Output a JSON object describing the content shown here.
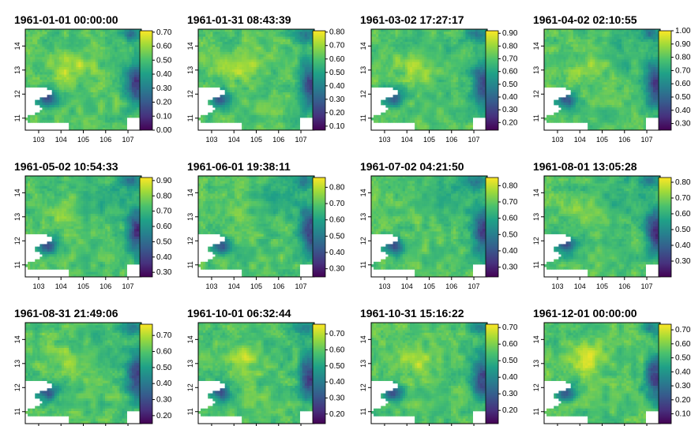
{
  "chart_data": {
    "type": "heatmap",
    "layout": "3x4 grid of raster maps with continuous viridis colorbars",
    "colormap": "viridis",
    "x_ticks": [
      103,
      104,
      105,
      106,
      107
    ],
    "y_ticks": [
      11,
      12,
      13,
      14
    ],
    "panels": [
      {
        "title": "1961-01-01 00:00:00",
        "legend_ticks": [
          "0.00",
          "0.10",
          "0.20",
          "0.30",
          "0.40",
          "0.50",
          "0.60",
          "0.70"
        ],
        "legend_range": [
          0.0,
          0.71
        ]
      },
      {
        "title": "1961-01-31 08:43:39",
        "legend_ticks": [
          "0.10",
          "0.20",
          "0.30",
          "0.40",
          "0.50",
          "0.60",
          "0.70",
          "0.80"
        ],
        "legend_range": [
          0.07,
          0.81
        ]
      },
      {
        "title": "1961-03-02 17:27:17",
        "legend_ticks": [
          "0.20",
          "0.30",
          "0.40",
          "0.50",
          "0.60",
          "0.70",
          "0.80",
          "0.90"
        ],
        "legend_range": [
          0.14,
          0.92
        ]
      },
      {
        "title": "1961-04-02 02:10:55",
        "legend_ticks": [
          "0.30",
          "0.40",
          "0.50",
          "0.60",
          "0.70",
          "0.80",
          "0.90",
          "1.00"
        ],
        "legend_range": [
          0.25,
          1.0
        ]
      },
      {
        "title": "1961-05-02 10:54:33",
        "legend_ticks": [
          "0.30",
          "0.40",
          "0.50",
          "0.60",
          "0.70",
          "0.80",
          "0.90"
        ],
        "legend_range": [
          0.27,
          0.92
        ]
      },
      {
        "title": "1961-06-01 19:38:11",
        "legend_ticks": [
          "0.30",
          "0.40",
          "0.50",
          "0.60",
          "0.70",
          "0.80"
        ],
        "legend_range": [
          0.25,
          0.86
        ]
      },
      {
        "title": "1961-07-02 04:21:50",
        "legend_ticks": [
          "0.30",
          "0.40",
          "0.50",
          "0.60",
          "0.70",
          "0.80"
        ],
        "legend_range": [
          0.24,
          0.85
        ]
      },
      {
        "title": "1961-08-01 13:05:28",
        "legend_ticks": [
          "0.30",
          "0.40",
          "0.50",
          "0.60",
          "0.70",
          "0.80"
        ],
        "legend_range": [
          0.2,
          0.83
        ]
      },
      {
        "title": "1961-08-31 21:49:06",
        "legend_ticks": [
          "0.20",
          "0.30",
          "0.40",
          "0.50",
          "0.60",
          "0.70"
        ],
        "legend_range": [
          0.15,
          0.77
        ]
      },
      {
        "title": "1961-10-01 06:32:44",
        "legend_ticks": [
          "0.20",
          "0.30",
          "0.40",
          "0.50",
          "0.60",
          "0.70"
        ],
        "legend_range": [
          0.14,
          0.76
        ]
      },
      {
        "title": "1961-10-31 15:16:22",
        "legend_ticks": [
          "0.20",
          "0.30",
          "0.40",
          "0.50",
          "0.60",
          "0.70"
        ],
        "legend_range": [
          0.12,
          0.72
        ]
      },
      {
        "title": "1961-12-01 00:00:00",
        "legend_ticks": [
          "0.10",
          "0.20",
          "0.30",
          "0.40",
          "0.50",
          "0.60",
          "0.70"
        ],
        "legend_range": [
          0.03,
          0.74
        ]
      }
    ]
  }
}
